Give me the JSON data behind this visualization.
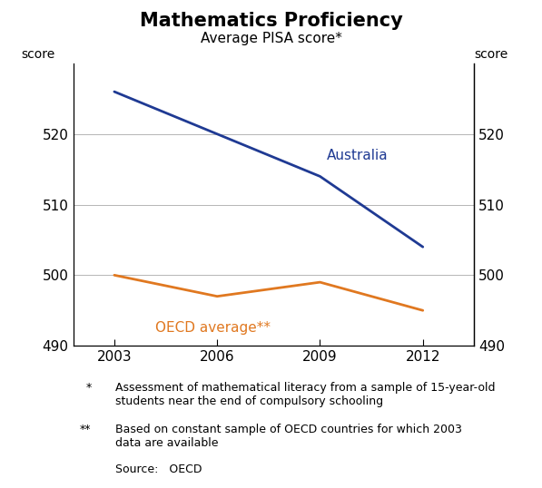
{
  "title": "Mathematics Proficiency",
  "subtitle": "Average PISA score*",
  "ylabel_left": "score",
  "ylabel_right": "score",
  "years": [
    2003,
    2006,
    2009,
    2012
  ],
  "australia": [
    526,
    520,
    514,
    504
  ],
  "oecd": [
    500,
    497,
    499,
    495
  ],
  "australia_color": "#1f3a93",
  "oecd_color": "#e07820",
  "ylim": [
    490,
    530
  ],
  "yticks": [
    490,
    500,
    510,
    520
  ],
  "xticks": [
    2003,
    2006,
    2009,
    2012
  ],
  "australia_label": "Australia",
  "oecd_label": "OECD average**",
  "footnote1_marker": "*",
  "footnote1_text": "Assessment of mathematical literacy from a sample of 15-year-old\nstudents near the end of compulsory schooling",
  "footnote2_marker": "**",
  "footnote2_text": "Based on constant sample of OECD countries for which 2003\ndata are available",
  "source_label": "Source:",
  "source_text": "   OECD",
  "line_width": 2.0,
  "grid_color": "#aaaaaa",
  "background_color": "#ffffff",
  "tick_fontsize": 11,
  "label_fontsize": 10,
  "footnote_fontsize": 9,
  "title_fontsize": 15,
  "subtitle_fontsize": 11
}
